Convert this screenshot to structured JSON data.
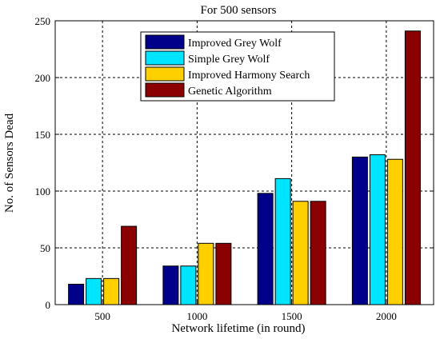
{
  "chart_data": {
    "type": "bar",
    "title": "For 500 sensors",
    "xlabel": "Network lifetime (in round)",
    "ylabel": "No. of Sensors Dead",
    "categories": [
      "500",
      "1000",
      "1500",
      "2000"
    ],
    "ylim": [
      0,
      250
    ],
    "yticks": [
      "0",
      "50",
      "100",
      "150",
      "200",
      "250"
    ],
    "grid": true,
    "legend_position": "top-center",
    "series": [
      {
        "name": "Improved Grey Wolf",
        "color": "#00008B",
        "values": [
          18,
          34,
          98,
          130
        ]
      },
      {
        "name": "Simple Grey Wolf",
        "color": "#00E5FF",
        "values": [
          23,
          34,
          111,
          132
        ]
      },
      {
        "name": "Improved Harmony Search",
        "color": "#FFD000",
        "values": [
          23,
          54,
          91,
          128
        ]
      },
      {
        "name": "Genetic Algorithm",
        "color": "#8B0000",
        "values": [
          69,
          54,
          91,
          241
        ]
      }
    ]
  }
}
